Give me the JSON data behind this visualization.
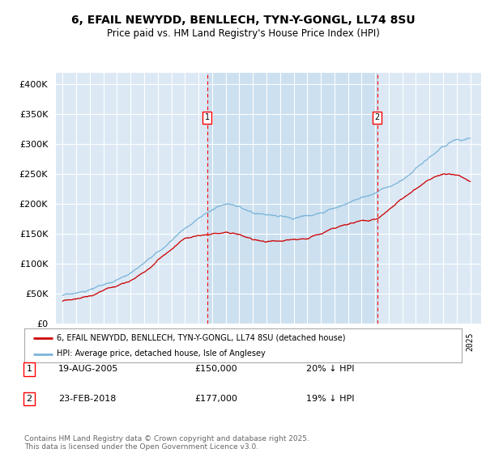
{
  "title_line1": "6, EFAIL NEWYDD, BENLLECH, TYN-Y-GONGL, LL74 8SU",
  "title_line2": "Price paid vs. HM Land Registry's House Price Index (HPI)",
  "background_color": "#ffffff",
  "plot_bg_color": "#dce9f5",
  "ylim": [
    0,
    420000
  ],
  "yticks": [
    0,
    50000,
    100000,
    150000,
    200000,
    250000,
    300000,
    350000,
    400000
  ],
  "ytick_labels": [
    "£0",
    "£50K",
    "£100K",
    "£150K",
    "£200K",
    "£250K",
    "£300K",
    "£350K",
    "£400K"
  ],
  "hpi_color": "#7ab4d8",
  "price_color": "#cc0000",
  "marker1_x": 2005.63,
  "marker2_x": 2018.14,
  "legend_entry1": "6, EFAIL NEWYDD, BENLLECH, TYN-Y-GONGL, LL74 8SU (detached house)",
  "legend_entry2": "HPI: Average price, detached house, Isle of Anglesey",
  "footer": "Contains HM Land Registry data © Crown copyright and database right 2025.\nThis data is licensed under the Open Government Licence v3.0.",
  "grid_color": "#ffffff",
  "fill_color": "#cce0f0",
  "annotation_table": [
    [
      "1",
      "19-AUG-2005",
      "£150,000",
      "20% ↓ HPI"
    ],
    [
      "2",
      "23-FEB-2018",
      "£177,000",
      "19% ↓ HPI"
    ]
  ],
  "hpi_knots_x": [
    1995,
    1996,
    1997,
    1998,
    1999,
    2000,
    2001,
    2002,
    2003,
    2004,
    2005,
    2006,
    2007,
    2008,
    2009,
    2010,
    2011,
    2012,
    2013,
    2014,
    2015,
    2016,
    2017,
    2018,
    2019,
    2020,
    2021,
    2022,
    2023,
    2024,
    2025
  ],
  "hpi_knots_y": [
    48000,
    51000,
    56000,
    62000,
    70000,
    82000,
    98000,
    118000,
    140000,
    162000,
    178000,
    192000,
    200000,
    196000,
    183000,
    180000,
    175000,
    172000,
    176000,
    183000,
    192000,
    200000,
    210000,
    218000,
    228000,
    238000,
    258000,
    278000,
    295000,
    308000,
    310000
  ],
  "price_knots_x": [
    1995,
    1996,
    1997,
    1998,
    1999,
    2000,
    2001,
    2002,
    2003,
    2004,
    2005,
    2005.63,
    2006,
    2007,
    2008,
    2009,
    2010,
    2011,
    2012,
    2013,
    2014,
    2015,
    2016,
    2017,
    2018,
    2018.14,
    2019,
    2020,
    2021,
    2022,
    2023,
    2024,
    2025
  ],
  "price_knots_y": [
    38000,
    42000,
    47000,
    54000,
    62000,
    74000,
    88000,
    106000,
    126000,
    144000,
    148000,
    150000,
    152000,
    155000,
    150000,
    142000,
    140000,
    138000,
    140000,
    144000,
    150000,
    158000,
    165000,
    172000,
    176000,
    177000,
    192000,
    208000,
    225000,
    242000,
    252000,
    248000,
    238000
  ]
}
